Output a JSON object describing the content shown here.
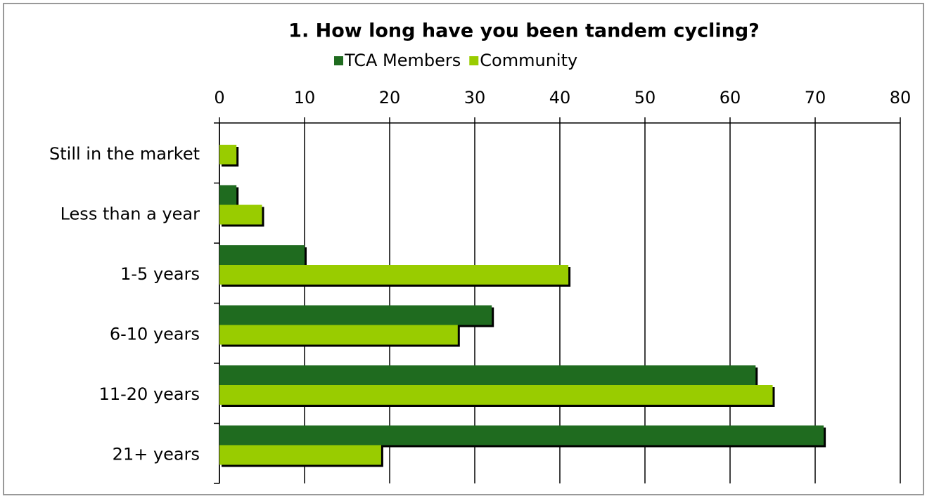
{
  "chart_data": {
    "type": "bar",
    "orientation": "horizontal",
    "title": "1.  How long have you been tandem cycling?",
    "categories": [
      "Still in the market",
      "Less than a year",
      "1-5 years",
      "6-10 years",
      "11-20 years",
      "21+ years"
    ],
    "series": [
      {
        "name": "TCA Members",
        "color": "#1f6b1f",
        "values": [
          0,
          2,
          10,
          32,
          63,
          71
        ]
      },
      {
        "name": "Community",
        "color": "#99cc00",
        "values": [
          2,
          5,
          41,
          28,
          65,
          19
        ]
      }
    ],
    "xlim": [
      0,
      80
    ],
    "xticks": [
      0,
      10,
      20,
      30,
      40,
      50,
      60,
      70,
      80
    ],
    "grid": true,
    "legend": "top"
  }
}
